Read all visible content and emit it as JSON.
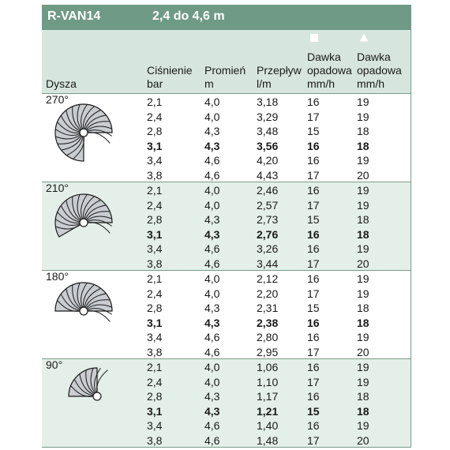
{
  "title": {
    "model": "R-VAN14",
    "range": "2,4 do 4,6 m"
  },
  "headers": {
    "nozzle": "Dysza",
    "pressure_1": "Ciśnienie",
    "pressure_2": "bar",
    "radius_1": "Promień",
    "radius_2": "m",
    "flow_1": "Przepływ",
    "flow_2": "l/m",
    "rate_square_1": "Dawka",
    "rate_square_2": "opadowa",
    "rate_square_3": "mm/h",
    "rate_triangle_1": "Dawka",
    "rate_triangle_2": "opadowa",
    "rate_triangle_3": "mm/h",
    "square_icon": "square-icon",
    "triangle_icon": "triangle-icon"
  },
  "colors": {
    "title_bg": "#6f9a85",
    "header_bg": "#d6e6de",
    "alt_bg": "#e4efe9",
    "rule": "#7a9a8a"
  },
  "sections": [
    {
      "label": "270°",
      "arc_degrees": 270,
      "rows": [
        [
          "2,1",
          "4,0",
          "3,18",
          "16",
          "19"
        ],
        [
          "2,4",
          "4,0",
          "3,29",
          "17",
          "19"
        ],
        [
          "2,8",
          "4,3",
          "3,48",
          "15",
          "18"
        ],
        [
          "3,1",
          "4,3",
          "3,56",
          "16",
          "18"
        ],
        [
          "3,4",
          "4,6",
          "4,20",
          "16",
          "19"
        ],
        [
          "3,8",
          "4,6",
          "4,43",
          "17",
          "20"
        ]
      ]
    },
    {
      "label": "210°",
      "arc_degrees": 210,
      "rows": [
        [
          "2,1",
          "4,0",
          "2,46",
          "16",
          "19"
        ],
        [
          "2,4",
          "4,0",
          "2,57",
          "17",
          "19"
        ],
        [
          "2,8",
          "4,3",
          "2,73",
          "15",
          "18"
        ],
        [
          "3,1",
          "4,3",
          "2,76",
          "16",
          "18"
        ],
        [
          "3,4",
          "4,6",
          "3,26",
          "16",
          "19"
        ],
        [
          "3,8",
          "4,6",
          "3,44",
          "17",
          "20"
        ]
      ]
    },
    {
      "label": "180°",
      "arc_degrees": 180,
      "rows": [
        [
          "2,1",
          "4,0",
          "2,12",
          "16",
          "19"
        ],
        [
          "2,4",
          "4,0",
          "2,20",
          "17",
          "19"
        ],
        [
          "2,8",
          "4,3",
          "2,31",
          "15",
          "18"
        ],
        [
          "3,1",
          "4,3",
          "2,38",
          "16",
          "18"
        ],
        [
          "3,4",
          "4,6",
          "2,80",
          "16",
          "19"
        ],
        [
          "3,8",
          "4,6",
          "2,95",
          "17",
          "20"
        ]
      ]
    },
    {
      "label": "90°",
      "arc_degrees": 90,
      "rows": [
        [
          "2,1",
          "4,0",
          "1,06",
          "16",
          "19"
        ],
        [
          "2,4",
          "4,0",
          "1,10",
          "17",
          "19"
        ],
        [
          "2,8",
          "4,3",
          "1,17",
          "16",
          "18"
        ],
        [
          "3,1",
          "4,3",
          "1,21",
          "15",
          "18"
        ],
        [
          "3,4",
          "4,6",
          "1,40",
          "16",
          "19"
        ],
        [
          "3,8",
          "4,6",
          "1,48",
          "17",
          "20"
        ]
      ]
    }
  ],
  "bold_row_index": 3
}
